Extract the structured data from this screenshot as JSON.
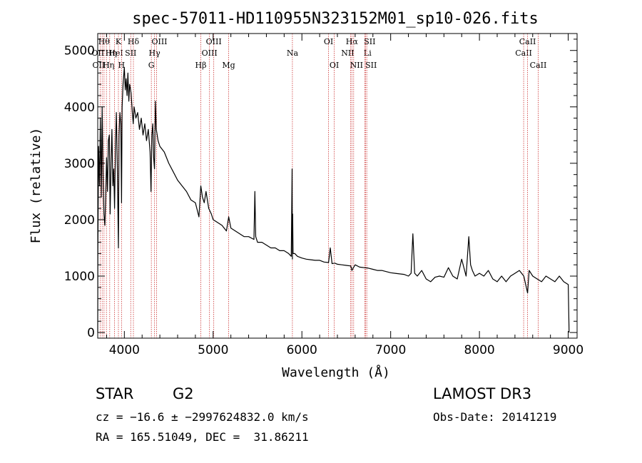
{
  "chart_data": {
    "type": "line",
    "title": "spec-57011-HD110955N323152M01_sp10-026.fits",
    "xlabel": "Wavelength (Å)",
    "ylabel": "Flux (relative)",
    "xlim": [
      3700,
      9100
    ],
    "ylim": [
      -100,
      5300
    ],
    "x_ticks": [
      4000,
      5000,
      6000,
      7000,
      8000,
      9000
    ],
    "y_ticks": [
      0,
      1000,
      2000,
      3000,
      4000,
      5000
    ],
    "series": [
      {
        "name": "spectrum",
        "x": [
          3700,
          3702,
          3710,
          3720,
          3730,
          3740,
          3750,
          3760,
          3770,
          3780,
          3790,
          3800,
          3810,
          3820,
          3830,
          3840,
          3850,
          3860,
          3870,
          3880,
          3890,
          3900,
          3910,
          3920,
          3933,
          3940,
          3950,
          3960,
          3968,
          3975,
          3985,
          4000,
          4010,
          4020,
          4030,
          4040,
          4050,
          4060,
          4075,
          4090,
          4100,
          4110,
          4130,
          4150,
          4170,
          4190,
          4210,
          4230,
          4250,
          4270,
          4290,
          4300,
          4310,
          4320,
          4330,
          4340,
          4350,
          4360,
          4380,
          4400,
          4450,
          4500,
          4550,
          4600,
          4650,
          4700,
          4750,
          4800,
          4840,
          4861,
          4880,
          4900,
          4920,
          4950,
          4980,
          5000,
          5050,
          5100,
          5150,
          5175,
          5200,
          5250,
          5300,
          5350,
          5400,
          5460,
          5470,
          5480,
          5500,
          5550,
          5600,
          5650,
          5700,
          5750,
          5800,
          5850,
          5880,
          5890,
          5893,
          5896,
          5900,
          5920,
          5950,
          6000,
          6050,
          6100,
          6150,
          6200,
          6250,
          6300,
          6320,
          6340,
          6370,
          6400,
          6450,
          6500,
          6550,
          6563,
          6580,
          6600,
          6650,
          6700,
          6750,
          6800,
          6850,
          6900,
          6950,
          7000,
          7050,
          7100,
          7150,
          7200,
          7230,
          7250,
          7270,
          7300,
          7350,
          7400,
          7450,
          7500,
          7550,
          7600,
          7650,
          7700,
          7750,
          7800,
          7850,
          7880,
          7900,
          7920,
          7950,
          8000,
          8050,
          8100,
          8150,
          8200,
          8250,
          8300,
          8350,
          8400,
          8450,
          8500,
          8542,
          8560,
          8600,
          8650,
          8700,
          8750,
          8800,
          8850,
          8900,
          8950,
          9000,
          9010
        ],
        "values": [
          0,
          1400,
          3300,
          2600,
          3800,
          2400,
          4000,
          2800,
          2100,
          1900,
          2400,
          3100,
          2500,
          3400,
          3500,
          2100,
          3000,
          3600,
          2600,
          2900,
          2200,
          3300,
          3900,
          3000,
          1500,
          3500,
          3900,
          3700,
          2300,
          4000,
          4400,
          4700,
          4300,
          4500,
          4200,
          4600,
          4100,
          4400,
          4250,
          3900,
          3700,
          4000,
          3800,
          3900,
          3600,
          3800,
          3500,
          3700,
          3400,
          3600,
          3200,
          2500,
          3500,
          3700,
          3100,
          2900,
          4100,
          3600,
          3400,
          3300,
          3200,
          3000,
          2850,
          2700,
          2600,
          2500,
          2350,
          2300,
          2050,
          2600,
          2400,
          2300,
          2500,
          2200,
          2100,
          2000,
          1950,
          1900,
          1800,
          2050,
          1850,
          1800,
          1750,
          1700,
          1700,
          1650,
          2500,
          1700,
          1600,
          1600,
          1550,
          1500,
          1500,
          1450,
          1450,
          1400,
          1350,
          2900,
          1300,
          2100,
          1400,
          1400,
          1350,
          1320,
          1300,
          1290,
          1280,
          1280,
          1250,
          1240,
          1500,
          1220,
          1230,
          1210,
          1200,
          1190,
          1180,
          1100,
          1150,
          1200,
          1160,
          1150,
          1140,
          1120,
          1100,
          1100,
          1080,
          1060,
          1050,
          1040,
          1030,
          1000,
          1050,
          1750,
          1050,
          1000,
          1100,
          950,
          900,
          980,
          1000,
          980,
          1150,
          1000,
          950,
          1300,
          1000,
          1700,
          1200,
          1100,
          1000,
          1050,
          1000,
          1100,
          950,
          900,
          1000,
          900,
          1000,
          1050,
          1100,
          1000,
          700,
          1100,
          1000,
          950,
          900,
          1000,
          950,
          900,
          1000,
          900,
          850,
          0
        ]
      }
    ],
    "lines": [
      {
        "w": 3727,
        "label": "OII",
        "row": 2,
        "dx": -2
      },
      {
        "w": 3750,
        "label": "OII",
        "row": 1,
        "dx": -6
      },
      {
        "w": 3771,
        "label": "Hθ",
        "row": 0,
        "dx": 0
      },
      {
        "w": 3798,
        "label": "Hη",
        "row": 2,
        "dx": 3
      },
      {
        "w": 3835,
        "label": "Hη",
        "row": 1,
        "dx": 2
      },
      {
        "w": 3889,
        "label": "HeI",
        "row": 1,
        "dx": 2
      },
      {
        "w": 3933,
        "label": "K",
        "row": 0,
        "dx": 0
      },
      {
        "w": 3968,
        "label": "H",
        "row": 2,
        "dx": 0
      },
      {
        "w": 4072,
        "label": "SII",
        "row": 1,
        "dx": 0
      },
      {
        "w": 4102,
        "label": "Hδ",
        "row": 0,
        "dx": 0
      },
      {
        "w": 4304,
        "label": "G",
        "row": 2,
        "dx": 0
      },
      {
        "w": 4340,
        "label": "Hγ",
        "row": 1,
        "dx": 0
      },
      {
        "w": 4363,
        "label": "OIII",
        "row": 0,
        "dx": 4
      },
      {
        "w": 4861,
        "label": "Hβ",
        "row": 2,
        "dx": 0
      },
      {
        "w": 4959,
        "label": "OIII",
        "row": 1,
        "dx": 0
      },
      {
        "w": 5007,
        "label": "OIII",
        "row": 0,
        "dx": 0
      },
      {
        "w": 5175,
        "label": "Mg",
        "row": 2,
        "dx": 0
      },
      {
        "w": 5893,
        "label": "Na",
        "row": 1,
        "dx": 0
      },
      {
        "w": 6300,
        "label": "OI",
        "row": 0,
        "dx": 0
      },
      {
        "w": 6364,
        "label": "OI",
        "row": 2,
        "dx": 0
      },
      {
        "w": 6548,
        "label": "NII",
        "row": 1,
        "dx": -4
      },
      {
        "w": 6563,
        "label": "Hα",
        "row": 0,
        "dx": 0
      },
      {
        "w": 6583,
        "label": "NII",
        "row": 2,
        "dx": 4
      },
      {
        "w": 6708,
        "label": "Li",
        "row": 1,
        "dx": 4
      },
      {
        "w": 6716,
        "label": "SII",
        "row": 0,
        "dx": 6
      },
      {
        "w": 6731,
        "label": "SII",
        "row": 2,
        "dx": 6
      },
      {
        "w": 8498,
        "label": "CaII",
        "row": 1,
        "dx": 0
      },
      {
        "w": 8542,
        "label": "CaII",
        "row": 0,
        "dx": 0
      },
      {
        "w": 8662,
        "label": "CaII",
        "row": 2,
        "dx": 0
      }
    ]
  },
  "info": {
    "class": "STAR",
    "subclass": "G2",
    "survey": "LAMOST DR3",
    "cz": "cz = −16.6 ± −2997624832.0 km/s",
    "obs_date": "Obs-Date: 20141219",
    "coords": "RA = 165.51049, DEC =  31.86211"
  },
  "colors": {
    "line_marker": "#cc3333",
    "spectrum": "#000000",
    "axes": "#000000"
  }
}
